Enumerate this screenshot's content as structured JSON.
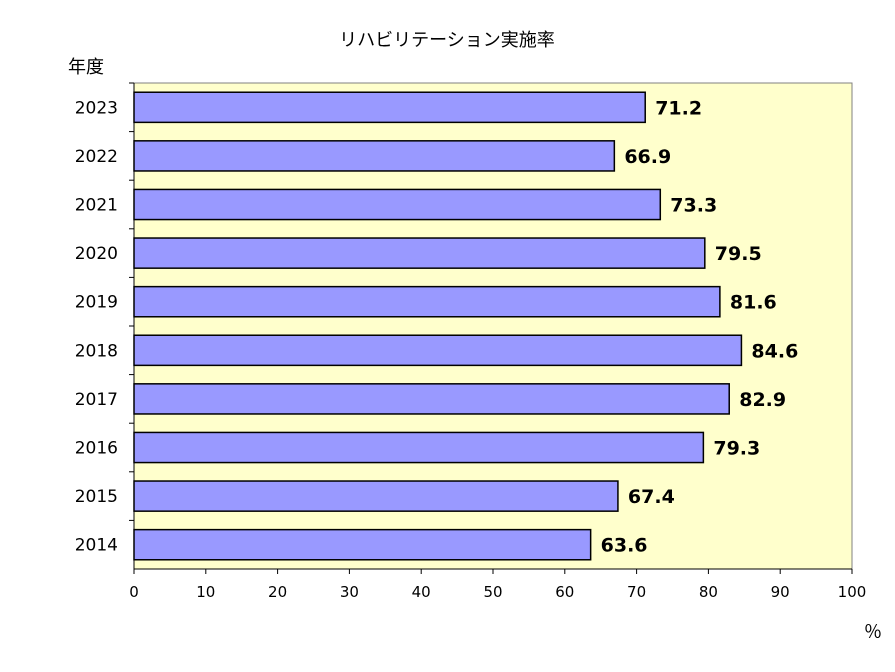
{
  "chart_data": {
    "type": "bar",
    "orientation": "horizontal",
    "title": "リハビリテーション実施率",
    "ylabel": "年度",
    "xlabel": "％",
    "categories": [
      "2023",
      "2022",
      "2021",
      "2020",
      "2019",
      "2018",
      "2017",
      "2016",
      "2015",
      "2014"
    ],
    "values": [
      71.2,
      66.9,
      73.3,
      79.5,
      81.6,
      84.6,
      82.9,
      79.3,
      67.4,
      63.6
    ],
    "value_labels": [
      "71.2",
      "66.9",
      "73.3",
      "79.5",
      "81.6",
      "84.6",
      "82.9",
      "79.3",
      "67.4",
      "63.6"
    ],
    "xlim": [
      0,
      100
    ],
    "xticks": [
      0,
      10,
      20,
      30,
      40,
      50,
      60,
      70,
      80,
      90,
      100
    ],
    "grid": false,
    "legend": "none",
    "colors": {
      "plot_background": "#ffffcc",
      "bar_fill": "#9999ff",
      "bar_stroke": "#000000"
    }
  }
}
